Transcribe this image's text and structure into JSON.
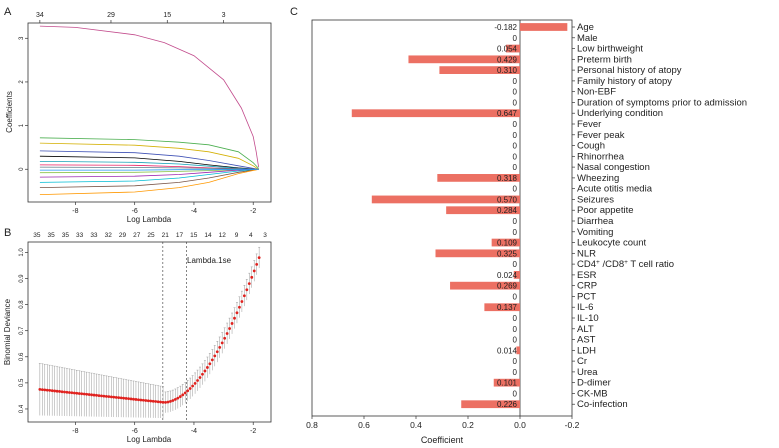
{
  "colors": {
    "bar": "#ec7063",
    "point": "#e0221f",
    "errbar": "#9a9a9a",
    "axis": "#333333"
  },
  "chart_data": [
    {
      "panel": "A",
      "type": "line",
      "title": "",
      "xlabel": "Log Lambda",
      "ylabel": "Coefficients",
      "xlim": [
        -9.6,
        -1.4
      ],
      "ylim": [
        -0.75,
        3.35
      ],
      "xticks": [
        -8,
        -6,
        -4,
        -2
      ],
      "yticks": [
        0,
        1,
        2,
        3
      ],
      "top_ticks": [
        {
          "x": -9.2,
          "label": "34"
        },
        {
          "x": -6.8,
          "label": "29"
        },
        {
          "x": -4.9,
          "label": "15"
        },
        {
          "x": -3.0,
          "label": "3"
        }
      ],
      "series": [
        {
          "name": "s1",
          "color": "#c24b8c",
          "x": [
            -9.2,
            -8,
            -6,
            -5,
            -4,
            -3,
            -2.4,
            -2.0,
            -1.9,
            -1.82
          ],
          "y": [
            3.28,
            3.25,
            3.08,
            2.9,
            2.6,
            2.05,
            1.4,
            0.75,
            0.4,
            0.05
          ]
        },
        {
          "name": "s2",
          "color": "#4caf50",
          "x": [
            -9.2,
            -6,
            -4.5,
            -3.5,
            -2.5,
            -2.0,
            -1.82
          ],
          "y": [
            0.72,
            0.68,
            0.62,
            0.56,
            0.4,
            0.15,
            0.02
          ]
        },
        {
          "name": "s3",
          "color": "#d4b106",
          "x": [
            -9.2,
            -6,
            -4.5,
            -3.5,
            -2.5,
            -2.0,
            -1.82
          ],
          "y": [
            0.6,
            0.55,
            0.48,
            0.4,
            0.25,
            0.08,
            0.0
          ]
        },
        {
          "name": "s4",
          "color": "#3f51b5",
          "x": [
            -9.2,
            -6,
            -4.5,
            -3.5,
            -2.5,
            -1.82
          ],
          "y": [
            0.42,
            0.38,
            0.3,
            0.2,
            0.08,
            0.0
          ]
        },
        {
          "name": "s5",
          "color": "#000000",
          "x": [
            -9.2,
            -6,
            -4.5,
            -3.5,
            -2.5,
            -1.82
          ],
          "y": [
            0.3,
            0.26,
            0.18,
            0.1,
            0.03,
            0.0
          ]
        },
        {
          "name": "s6",
          "color": "#17a2b8",
          "x": [
            -9.2,
            -6,
            -4.5,
            -3.5,
            -2.5,
            -1.82
          ],
          "y": [
            0.18,
            0.16,
            0.12,
            0.07,
            0.02,
            0.0
          ]
        },
        {
          "name": "s7",
          "color": "#e91e63",
          "x": [
            -9.2,
            -6,
            -4.5,
            -3.5,
            -2.5,
            -1.82
          ],
          "y": [
            0.1,
            0.09,
            0.06,
            0.03,
            0.01,
            0.0
          ]
        },
        {
          "name": "s8",
          "color": "#8bc34a",
          "x": [
            -9.2,
            -6,
            -4.5,
            -3.5,
            -2.5,
            -1.82
          ],
          "y": [
            -0.08,
            -0.07,
            -0.05,
            -0.03,
            -0.01,
            0.0
          ]
        },
        {
          "name": "s9",
          "color": "#9c27b0",
          "x": [
            -9.2,
            -6,
            -4.5,
            -3.5,
            -2.5,
            -1.82
          ],
          "y": [
            -0.18,
            -0.16,
            -0.12,
            -0.07,
            -0.02,
            0.0
          ]
        },
        {
          "name": "s10",
          "color": "#00bcd4",
          "x": [
            -9.2,
            -6,
            -4.5,
            -3.5,
            -2.5,
            -1.82
          ],
          "y": [
            -0.3,
            -0.27,
            -0.2,
            -0.12,
            -0.04,
            0.0
          ]
        },
        {
          "name": "s11",
          "color": "#795548",
          "x": [
            -9.2,
            -6,
            -4.5,
            -3.5,
            -2.5,
            -1.82
          ],
          "y": [
            -0.42,
            -0.38,
            -0.3,
            -0.2,
            -0.07,
            0.0
          ]
        },
        {
          "name": "s12",
          "color": "#ff9800",
          "x": [
            -9.2,
            -6,
            -4.5,
            -3.5,
            -2.5,
            -1.82
          ],
          "y": [
            -0.58,
            -0.52,
            -0.42,
            -0.3,
            -0.1,
            0.0
          ]
        },
        {
          "name": "s13",
          "color": "#607d8b",
          "x": [
            -9.2,
            -6,
            -4.5,
            -3.5,
            -2.5,
            -1.82
          ],
          "y": [
            0.05,
            0.04,
            0.03,
            0.02,
            0.01,
            0.0
          ]
        },
        {
          "name": "s14",
          "color": "#2196f3",
          "x": [
            -9.2,
            -6,
            -4.5,
            -3.5,
            -2.5,
            -1.82
          ],
          "y": [
            -0.02,
            -0.02,
            -0.01,
            -0.01,
            0.0,
            0.0
          ]
        }
      ]
    },
    {
      "panel": "B",
      "type": "scatter",
      "xlabel": "Log Lambda",
      "ylabel": "Binomial Deviance",
      "xlim": [
        -9.6,
        -1.4
      ],
      "ylim": [
        0.35,
        1.04
      ],
      "xticks": [
        -8,
        -6,
        -4,
        -2
      ],
      "yticks": [
        0.4,
        0.5,
        0.6,
        0.7,
        0.8,
        0.9,
        1.0
      ],
      "top_labels": [
        "35",
        "35",
        "35",
        "33",
        "33",
        "32",
        "29",
        "27",
        "25",
        "21",
        "17",
        "15",
        "14",
        "12",
        "9",
        "4",
        "3"
      ],
      "vlines": [
        -5.05,
        -4.25
      ],
      "annotation": "Lambda.1se",
      "x_start": -9.2,
      "x_end": -1.8,
      "y_start": 0.475,
      "y_min": 0.425,
      "x_min": -5.0,
      "y_end": 0.98,
      "errbar_halfwidth_left": 0.1,
      "errbar_halfwidth_right": 0.04
    },
    {
      "panel": "C",
      "type": "bar",
      "orientation": "horizontal",
      "xlabel": "Coefficient",
      "xlim": [
        0.8,
        -0.2
      ],
      "xticks": [
        0.8,
        0.6,
        0.4,
        0.2,
        0.0,
        -0.2
      ],
      "xtick_labels": [
        "0.8",
        "0.6",
        "0.4",
        "0.2",
        "0.0",
        "-0.2"
      ],
      "categories": [
        "Age",
        "Male",
        "Low birthweight",
        "Preterm birth",
        "Personal history of atopy",
        "Family history of atopy",
        "Non-EBF",
        "Duration of symptoms prior to admission",
        "Underlying condition",
        "Fever",
        "Fever peak",
        "Cough",
        "Rhinorrhea",
        "Nasal congestion",
        "Wheezing",
        "Acute otitis media",
        "Seizures",
        "Poor appetite",
        "Diarrhea",
        "Vomiting",
        "Leukocyte count",
        "NLR",
        "CD4+/CD8+ T cell ratio",
        "ESR",
        "CRP",
        "PCT",
        "IL-6",
        "IL-10",
        "ALT",
        "AST",
        "LDH",
        "Cr",
        "Urea",
        "D-dimer",
        "CK-MB",
        "Co-infection"
      ],
      "values": [
        -0.182,
        0,
        0.054,
        0.429,
        0.31,
        0,
        0,
        0,
        0.647,
        0,
        0,
        0,
        0,
        0,
        0.318,
        0,
        0.57,
        0.284,
        0,
        0,
        0.109,
        0.325,
        0,
        0.024,
        0.269,
        0,
        0.137,
        0,
        0,
        0,
        0.014,
        0,
        0,
        0.101,
        0,
        0.226
      ],
      "value_labels": [
        "-0.182",
        "0",
        "0.054",
        "0.429",
        "0.310",
        "0",
        "0",
        "0",
        "0.647",
        "0",
        "0",
        "0",
        "0",
        "0",
        "0.318",
        "0",
        "0.570",
        "0.284",
        "0",
        "0",
        "0.109",
        "0.325",
        "0",
        "0.024",
        "0.269",
        "0",
        "0.137",
        "0",
        "0",
        "0",
        "0.014",
        "0",
        "0",
        "0.101",
        "0",
        "0.226"
      ]
    }
  ],
  "panel_letters": [
    "A",
    "B",
    "C"
  ],
  "cd4_label": {
    "pre": "CD4",
    "sup1": "+",
    "mid": " /CD8",
    "sup2": "+",
    "post": " T cell ratio"
  }
}
